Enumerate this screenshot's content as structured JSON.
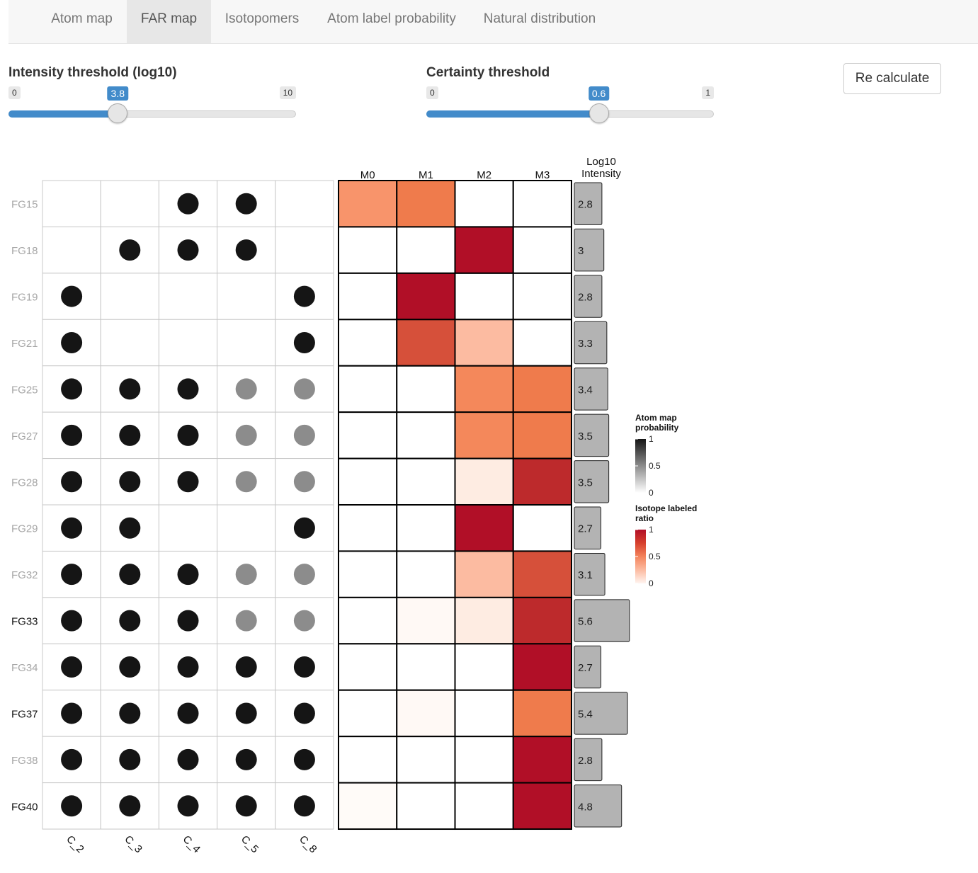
{
  "tabs": [
    {
      "label": "Atom map"
    },
    {
      "label": "FAR map"
    },
    {
      "label": "Isotopomers"
    },
    {
      "label": "Atom label probability"
    },
    {
      "label": "Natural distribution"
    }
  ],
  "active_tab": "FAR map",
  "intensity_slider": {
    "label": "Intensity threshold (log10)",
    "min": "0",
    "max": "10",
    "value": "3.8",
    "fraction": 0.38
  },
  "certainty_slider": {
    "label": "Certainty threshold",
    "min": "0",
    "max": "1",
    "value": "0.6",
    "fraction": 0.6
  },
  "recalculate_button": "Re calculate",
  "colors": {
    "slider_accent": "#428bca",
    "dot_black": "#151515",
    "dot_grey": "#8c8c8c",
    "bar_fill": "#b3b3b3",
    "ratio_high": "#b10f27",
    "ratio_low": "#ffffff"
  },
  "chart_data": {
    "type": "heatmap",
    "rows": [
      "FG15",
      "FG18",
      "FG19",
      "FG21",
      "FG25",
      "FG27",
      "FG28",
      "FG29",
      "FG32",
      "FG33",
      "FG34",
      "FG37",
      "FG38",
      "FG40"
    ],
    "row_label_emphasis": [
      false,
      false,
      false,
      false,
      false,
      false,
      false,
      false,
      false,
      true,
      false,
      true,
      false,
      true
    ],
    "atom_columns": [
      "C_2",
      "C_3",
      "C_4",
      "C_5",
      "C_8"
    ],
    "atom_map_probability": [
      [
        0,
        0,
        1,
        1,
        0
      ],
      [
        0,
        1,
        1,
        1,
        0
      ],
      [
        1,
        0,
        0,
        0,
        1
      ],
      [
        1,
        0,
        0,
        0,
        1
      ],
      [
        1,
        1,
        1,
        0.5,
        0.5
      ],
      [
        1,
        1,
        1,
        0.5,
        0.5
      ],
      [
        1,
        1,
        1,
        0.5,
        0.5
      ],
      [
        1,
        1,
        0,
        0,
        1
      ],
      [
        1,
        1,
        1,
        0.5,
        0.5
      ],
      [
        1,
        1,
        1,
        0.5,
        0.5
      ],
      [
        1,
        1,
        1,
        1,
        1
      ],
      [
        1,
        1,
        1,
        1,
        1
      ],
      [
        1,
        1,
        1,
        1,
        1
      ],
      [
        1,
        1,
        1,
        1,
        1
      ]
    ],
    "isotope_columns": [
      "M0",
      "M1",
      "M2",
      "M3"
    ],
    "isotope_labeled_ratio": [
      [
        0.5,
        0.6,
        0,
        0
      ],
      [
        0,
        0,
        1,
        0
      ],
      [
        0,
        1,
        0,
        0
      ],
      [
        0,
        0.7,
        0.3,
        0
      ],
      [
        0,
        0,
        0.55,
        0.6
      ],
      [
        0,
        0,
        0.55,
        0.6
      ],
      [
        0,
        0,
        0.08,
        0.9
      ],
      [
        0,
        0,
        1,
        0
      ],
      [
        0,
        0,
        0.3,
        0.7
      ],
      [
        0,
        0.02,
        0.08,
        0.9
      ],
      [
        0,
        0,
        0,
        1
      ],
      [
        0,
        0.02,
        0,
        0.6
      ],
      [
        0,
        0,
        0,
        1
      ],
      [
        0.01,
        0,
        0,
        1
      ]
    ],
    "intensity_title": "Log10\nIntensity",
    "log10_intensity": [
      2.8,
      3,
      2.8,
      3.3,
      3.4,
      3.5,
      3.5,
      2.7,
      3.1,
      5.6,
      2.7,
      5.4,
      2.8,
      4.8
    ],
    "intensity_labels": [
      "2.8",
      "3",
      "2.8",
      "3.3",
      "3.4",
      "3.5",
      "3.5",
      "2.7",
      "3.1",
      "5.6",
      "2.7",
      "5.4",
      "2.8",
      "4.8"
    ],
    "legends": [
      {
        "title": "Atom map\nprobability",
        "ticks": [
          "1",
          "0.5",
          "0"
        ]
      },
      {
        "title": "Isotope labeled\nratio",
        "ticks": [
          "1",
          "0.5",
          "0"
        ]
      }
    ]
  }
}
